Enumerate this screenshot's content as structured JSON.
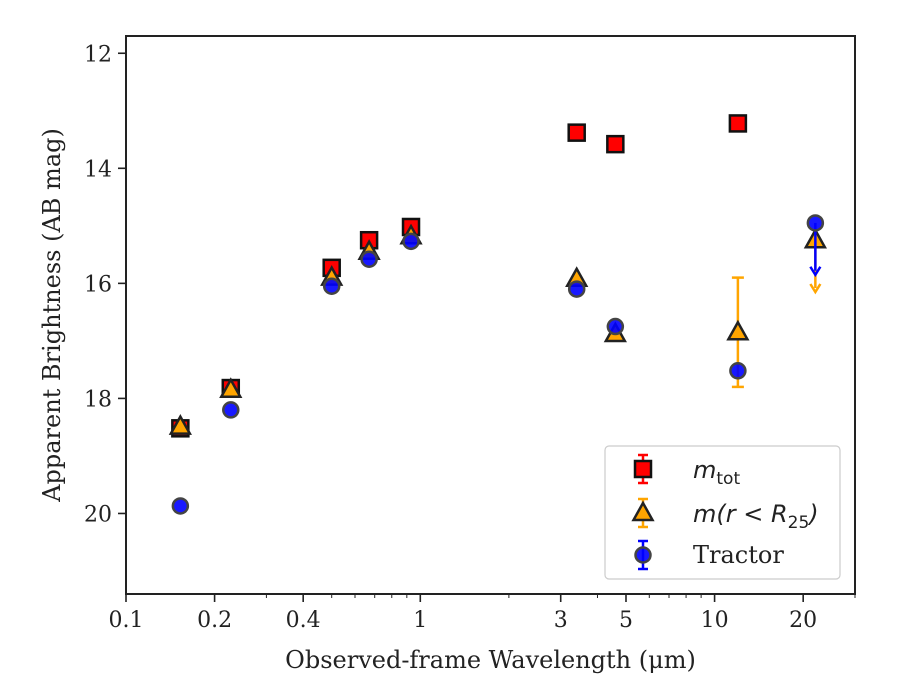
{
  "chart_data": {
    "type": "scatter",
    "title": "",
    "xlabel": "Observed-frame Wavelength (μm)",
    "ylabel": "Apparent Brightness (AB mag)",
    "xscale": "log",
    "xlim": [
      0.1,
      30
    ],
    "ylim": [
      21.4,
      11.7
    ],
    "y_inverted": true,
    "xticks": [
      0.1,
      0.2,
      0.4,
      1,
      3,
      5,
      10,
      20
    ],
    "xtick_labels": [
      "0.1",
      "0.2",
      "0.4",
      "1",
      "3",
      "5",
      "10",
      "20"
    ],
    "yticks": [
      12,
      14,
      16,
      18,
      20
    ],
    "ytick_labels": [
      "12",
      "14",
      "16",
      "18",
      "20"
    ],
    "grid": false,
    "legend_position": "lower-right",
    "series": [
      {
        "name": "m_tot",
        "legend_label": "m",
        "legend_sub": "tot",
        "marker": "square",
        "color": "#ff0000",
        "points": [
          {
            "x": 0.153,
            "y": 18.52
          },
          {
            "x": 0.227,
            "y": 17.82
          },
          {
            "x": 0.5,
            "y": 15.73
          },
          {
            "x": 0.67,
            "y": 15.25
          },
          {
            "x": 0.93,
            "y": 15.02
          },
          {
            "x": 3.4,
            "y": 13.38
          },
          {
            "x": 4.6,
            "y": 13.58
          },
          {
            "x": 12.0,
            "y": 13.22
          }
        ]
      },
      {
        "name": "m(r < R25)",
        "legend_label": "m(r < R",
        "legend_sub": "25",
        "legend_tail": ")",
        "marker": "triangle",
        "color": "#ffa500",
        "points": [
          {
            "x": 0.153,
            "y": 18.49
          },
          {
            "x": 0.227,
            "y": 17.85
          },
          {
            "x": 0.5,
            "y": 15.9
          },
          {
            "x": 0.67,
            "y": 15.45
          },
          {
            "x": 0.93,
            "y": 15.18
          },
          {
            "x": 3.4,
            "y": 15.92
          },
          {
            "x": 4.6,
            "y": 16.88
          },
          {
            "x": 12.0,
            "y": 16.85,
            "err_low": 15.9,
            "err_high": 17.8
          },
          {
            "x": 22.0,
            "y": 15.25,
            "upper_limit": true,
            "arrow_to": 16.15
          }
        ]
      },
      {
        "name": "Tractor",
        "legend_label": "Tractor",
        "marker": "circle",
        "color": "#0000ff",
        "points": [
          {
            "x": 0.153,
            "y": 19.87
          },
          {
            "x": 0.227,
            "y": 18.2
          },
          {
            "x": 0.5,
            "y": 16.05
          },
          {
            "x": 0.67,
            "y": 15.58
          },
          {
            "x": 0.93,
            "y": 15.27
          },
          {
            "x": 3.4,
            "y": 16.1
          },
          {
            "x": 4.6,
            "y": 16.75
          },
          {
            "x": 12.0,
            "y": 17.52
          },
          {
            "x": 22.0,
            "y": 14.95,
            "upper_limit": true,
            "arrow_to": 15.85
          }
        ]
      }
    ]
  }
}
